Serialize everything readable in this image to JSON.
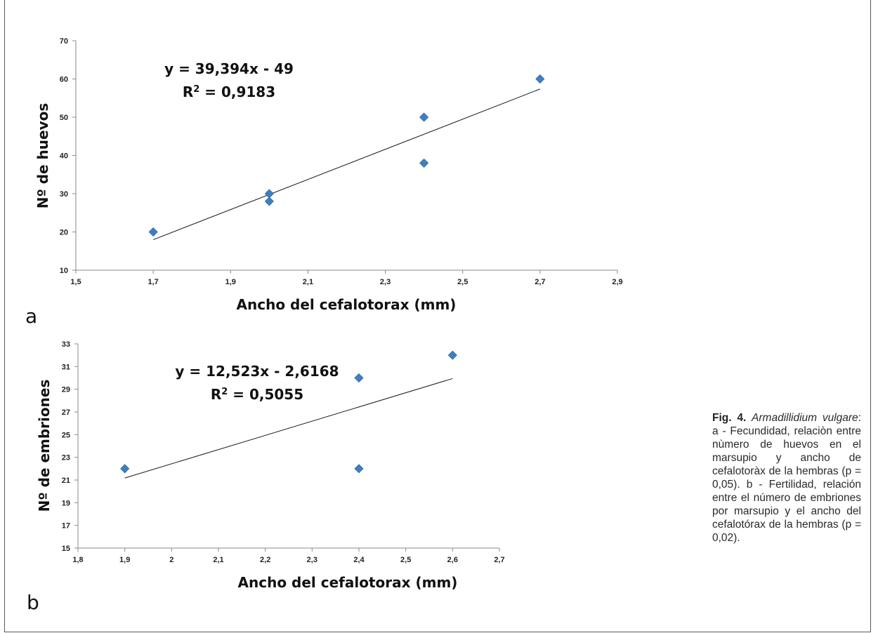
{
  "chart_data": [
    {
      "type": "scatter",
      "panel_label": "a",
      "xlabel": "Ancho del cefalotorax (mm)",
      "ylabel": "Nº de huevos",
      "xlim": [
        1.5,
        2.9
      ],
      "ylim": [
        10,
        70
      ],
      "x_ticks": [
        "1,5",
        "1,7",
        "1,9",
        "2,1",
        "2,3",
        "2,5",
        "2,7",
        "2,9"
      ],
      "y_ticks": [
        "10",
        "20",
        "30",
        "40",
        "50",
        "60",
        "70"
      ],
      "points": [
        {
          "x": 1.7,
          "y": 20
        },
        {
          "x": 2.0,
          "y": 30
        },
        {
          "x": 2.0,
          "y": 28
        },
        {
          "x": 2.4,
          "y": 50
        },
        {
          "x": 2.4,
          "y": 38
        },
        {
          "x": 2.7,
          "y": 60
        }
      ],
      "trendline": {
        "slope": 39.394,
        "intercept": -49,
        "x_range": [
          1.7,
          2.7
        ]
      },
      "equation": "y = 39,394x - 49",
      "r2_prefix": "R",
      "r2_sup": "2",
      "r2_value": " = 0,9183",
      "marker_color": "#3f7fbf"
    },
    {
      "type": "scatter",
      "panel_label": "b",
      "xlabel": "Ancho del cefalotorax (mm)",
      "ylabel": "Nº de embriones",
      "xlim": [
        1.8,
        2.7
      ],
      "ylim": [
        15,
        33
      ],
      "x_ticks": [
        "1,8",
        "1,9",
        "2",
        "2,1",
        "2,2",
        "2,3",
        "2,4",
        "2,5",
        "2,6",
        "2,7"
      ],
      "y_ticks": [
        "15",
        "17",
        "19",
        "21",
        "23",
        "25",
        "27",
        "29",
        "31",
        "33"
      ],
      "points": [
        {
          "x": 1.9,
          "y": 22
        },
        {
          "x": 2.4,
          "y": 30
        },
        {
          "x": 2.4,
          "y": 22
        },
        {
          "x": 2.6,
          "y": 32
        }
      ],
      "trendline": {
        "slope": 12.523,
        "intercept": -2.6168,
        "x_range": [
          1.9,
          2.6
        ]
      },
      "equation": "y = 12,523x - 2,6168",
      "r2_prefix": "R",
      "r2_sup": "2",
      "r2_value": " = 0,5055",
      "marker_color": "#3f7fbf"
    }
  ],
  "caption": {
    "fig_label": "Fig. 4.",
    "species": "Armadillidium vulgare",
    "text": ": a - Fecundidad, relaciòn entre nùmero de huevos en el marsupio y ancho de cefalotoràx de la hembras (p = 0,05). b - Fertilidad, relación entre el número de embriones por marsupio y el ancho del cefalotórax de la hembras (p = 0,02)."
  }
}
